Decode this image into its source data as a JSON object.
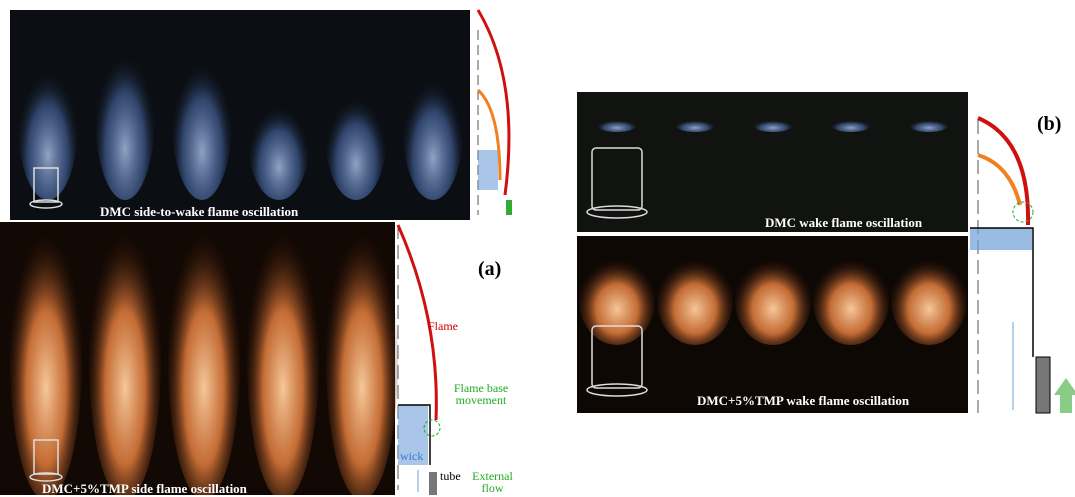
{
  "panel_a": {
    "label": "(a)",
    "top_caption": "DMC side-to-wake flame oscillation",
    "bottom_caption": "DMC+5%TMP side flame oscillation",
    "schematic": {
      "flame": "Flame",
      "flame_base": "Flame base movement",
      "wick": "wick",
      "tube": "tube",
      "external_flow": "External flow"
    }
  },
  "panel_b": {
    "label": "(b)",
    "top_caption": "DMC wake flame oscillation",
    "bottom_caption": "DMC+5%TMP wake flame oscillation"
  }
}
